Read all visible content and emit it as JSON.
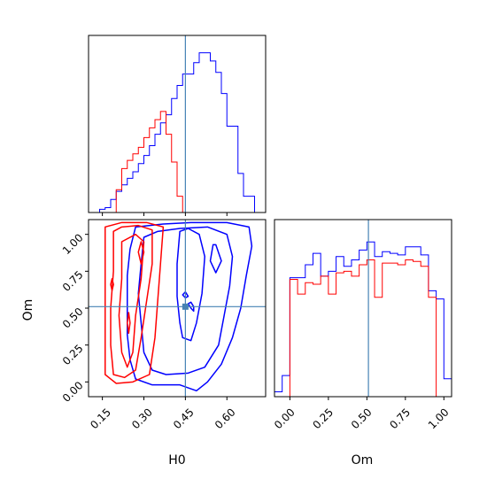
{
  "chart_data": {
    "type": "corner",
    "parameters": [
      "H0",
      "Om"
    ],
    "truth": {
      "H0": 0.45,
      "Om": 0.51
    },
    "colors": {
      "blue": "#0000ff",
      "red": "#ff0000",
      "truth": "#4682b4"
    },
    "panels": {
      "H0_hist": {
        "type": "histogram",
        "xlim": [
          0.1,
          0.74
        ],
        "bins_x": [
          0.1,
          0.12,
          0.14,
          0.16,
          0.18,
          0.2,
          0.22,
          0.24,
          0.26,
          0.28,
          0.3,
          0.32,
          0.34,
          0.36,
          0.38,
          0.4,
          0.42,
          0.44,
          0.46,
          0.48,
          0.5,
          0.52,
          0.54,
          0.56,
          0.58,
          0.6,
          0.62,
          0.64,
          0.66,
          0.68,
          0.7,
          0.72
        ],
        "series": [
          {
            "name": "",
            "color": "#0000ff",
            "counts": [
              0,
              0,
              0.02,
              0.03,
              0.08,
              0.13,
              0.17,
              0.21,
              0.25,
              0.3,
              0.35,
              0.41,
              0.48,
              0.55,
              0.6,
              0.7,
              0.78,
              0.85,
              0.85,
              0.92,
              0.98,
              0.98,
              0.93,
              0.86,
              0.73,
              0.53,
              0.53,
              0.24,
              0.1,
              0.1,
              0,
              0
            ]
          },
          {
            "name": "",
            "color": "#ff0000",
            "counts": [
              0,
              0,
              0,
              0,
              0,
              0.14,
              0.27,
              0.32,
              0.36,
              0.4,
              0.46,
              0.52,
              0.57,
              0.62,
              0.48,
              0.31,
              0.1,
              0,
              0,
              0,
              0,
              0,
              0,
              0,
              0,
              0,
              0,
              0,
              0,
              0,
              0,
              0
            ]
          }
        ],
        "ticks": [
          0.15,
          0.3,
          0.45,
          0.6
        ]
      },
      "Om_hist": {
        "type": "histogram",
        "xlim": [
          -0.1,
          1.05
        ],
        "bins_x": [
          -0.1,
          -0.05,
          0.0,
          0.05,
          0.1,
          0.15,
          0.2,
          0.25,
          0.3,
          0.35,
          0.4,
          0.45,
          0.5,
          0.55,
          0.6,
          0.65,
          0.7,
          0.75,
          0.8,
          0.85,
          0.9,
          0.95,
          1.0
        ],
        "series": [
          {
            "name": "",
            "color": "#0000ff",
            "counts": [
              0.03,
              0.13,
              0.73,
              0.73,
              0.81,
              0.88,
              0.74,
              0.77,
              0.86,
              0.8,
              0.84,
              0.9,
              0.95,
              0.86,
              0.89,
              0.88,
              0.87,
              0.92,
              0.92,
              0.87,
              0.65,
              0.6,
              0.11
            ]
          },
          {
            "name": "",
            "color": "#ff0000",
            "counts": [
              0,
              0,
              0.72,
              0.63,
              0.7,
              0.69,
              0.74,
              0.63,
              0.76,
              0.77,
              0.74,
              0.81,
              0.84,
              0.61,
              0.82,
              0.82,
              0.81,
              0.84,
              0.83,
              0.8,
              0.61,
              0,
              0
            ]
          }
        ],
        "xticks": [
          "0.00",
          "0.25",
          "0.50",
          "0.75",
          "1.00"
        ],
        "xtick_values": [
          0,
          0.25,
          0.5,
          0.75,
          1.0
        ],
        "xlabel": "Om"
      },
      "joint": {
        "type": "contour",
        "xlim": [
          0.1,
          0.74
        ],
        "ylim": [
          -0.1,
          1.1
        ],
        "xlabel": "H0",
        "ylabel": "Om",
        "xticks": [
          "0.15",
          "0.30",
          "0.45",
          "0.60"
        ],
        "xtick_values": [
          0.15,
          0.3,
          0.45,
          0.6
        ],
        "yticks": [
          "0.00",
          "0.25",
          "0.50",
          "0.75",
          "1.00"
        ],
        "ytick_values": [
          0,
          0.25,
          0.5,
          0.75,
          1.0
        ],
        "blue_contours": [
          [
            [
              0.27,
              1.05
            ],
            [
              0.25,
              0.9
            ],
            [
              0.24,
              0.72
            ],
            [
              0.24,
              0.52
            ],
            [
              0.24,
              0.32
            ],
            [
              0.25,
              0.15
            ],
            [
              0.27,
              0.02
            ],
            [
              0.33,
              -0.02
            ],
            [
              0.43,
              -0.02
            ],
            [
              0.49,
              -0.06
            ],
            [
              0.53,
              0.0
            ],
            [
              0.58,
              0.12
            ],
            [
              0.62,
              0.3
            ],
            [
              0.65,
              0.5
            ],
            [
              0.67,
              0.72
            ],
            [
              0.69,
              0.92
            ],
            [
              0.68,
              1.05
            ],
            [
              0.6,
              1.08
            ],
            [
              0.47,
              1.08
            ],
            [
              0.37,
              1.07
            ],
            [
              0.27,
              1.05
            ]
          ],
          [
            [
              0.3,
              0.98
            ],
            [
              0.29,
              0.8
            ],
            [
              0.28,
              0.6
            ],
            [
              0.29,
              0.4
            ],
            [
              0.3,
              0.2
            ],
            [
              0.33,
              0.08
            ],
            [
              0.38,
              0.05
            ],
            [
              0.46,
              0.06
            ],
            [
              0.52,
              0.1
            ],
            [
              0.57,
              0.25
            ],
            [
              0.59,
              0.45
            ],
            [
              0.61,
              0.65
            ],
            [
              0.62,
              0.85
            ],
            [
              0.6,
              1.0
            ],
            [
              0.53,
              1.05
            ],
            [
              0.43,
              1.04
            ],
            [
              0.35,
              1.02
            ],
            [
              0.3,
              0.98
            ]
          ],
          [
            [
              0.43,
              1.02
            ],
            [
              0.42,
              0.8
            ],
            [
              0.42,
              0.58
            ],
            [
              0.43,
              0.4
            ],
            [
              0.44,
              0.3
            ],
            [
              0.47,
              0.28
            ],
            [
              0.49,
              0.4
            ],
            [
              0.51,
              0.6
            ],
            [
              0.52,
              0.85
            ],
            [
              0.5,
              1.0
            ],
            [
              0.46,
              1.04
            ],
            [
              0.43,
              1.02
            ]
          ],
          [
            [
              0.55,
              0.93
            ],
            [
              0.54,
              0.82
            ],
            [
              0.56,
              0.74
            ],
            [
              0.58,
              0.82
            ],
            [
              0.56,
              0.93
            ],
            [
              0.55,
              0.93
            ]
          ],
          [
            [
              0.46,
              0.53
            ],
            [
              0.47,
              0.5
            ],
            [
              0.48,
              0.48
            ],
            [
              0.48,
              0.51
            ],
            [
              0.47,
              0.54
            ],
            [
              0.46,
              0.53
            ]
          ],
          [
            [
              0.44,
              0.59
            ],
            [
              0.45,
              0.57
            ],
            [
              0.46,
              0.58
            ],
            [
              0.45,
              0.61
            ],
            [
              0.44,
              0.59
            ]
          ]
        ],
        "red_contours": [
          [
            [
              0.16,
              1.05
            ],
            [
              0.16,
              0.8
            ],
            [
              0.16,
              0.52
            ],
            [
              0.16,
              0.3
            ],
            [
              0.16,
              0.05
            ],
            [
              0.2,
              -0.01
            ],
            [
              0.26,
              0.0
            ],
            [
              0.32,
              0.05
            ],
            [
              0.34,
              0.3
            ],
            [
              0.35,
              0.55
            ],
            [
              0.36,
              0.8
            ],
            [
              0.37,
              1.05
            ],
            [
              0.31,
              1.08
            ],
            [
              0.22,
              1.08
            ],
            [
              0.16,
              1.05
            ]
          ],
          [
            [
              0.19,
              1.02
            ],
            [
              0.19,
              0.75
            ],
            [
              0.18,
              0.5
            ],
            [
              0.18,
              0.25
            ],
            [
              0.19,
              0.05
            ],
            [
              0.23,
              0.03
            ],
            [
              0.27,
              0.08
            ],
            [
              0.29,
              0.3
            ],
            [
              0.31,
              0.55
            ],
            [
              0.33,
              0.8
            ],
            [
              0.33,
              1.03
            ],
            [
              0.28,
              1.06
            ],
            [
              0.22,
              1.05
            ],
            [
              0.19,
              1.02
            ]
          ],
          [
            [
              0.22,
              0.95
            ],
            [
              0.22,
              0.7
            ],
            [
              0.21,
              0.45
            ],
            [
              0.22,
              0.2
            ],
            [
              0.24,
              0.1
            ],
            [
              0.26,
              0.2
            ],
            [
              0.27,
              0.45
            ],
            [
              0.29,
              0.7
            ],
            [
              0.3,
              0.95
            ],
            [
              0.27,
              1.0
            ],
            [
              0.22,
              0.95
            ]
          ],
          [
            [
              0.18,
              0.66
            ],
            [
              0.185,
              0.62
            ],
            [
              0.19,
              0.66
            ],
            [
              0.185,
              0.7
            ],
            [
              0.18,
              0.66
            ]
          ],
          [
            [
              0.28,
              0.88
            ],
            [
              0.29,
              0.8
            ],
            [
              0.3,
              0.88
            ],
            [
              0.29,
              0.95
            ],
            [
              0.28,
              0.88
            ]
          ],
          [
            [
              0.24,
              0.4
            ],
            [
              0.245,
              0.33
            ],
            [
              0.25,
              0.4
            ],
            [
              0.245,
              0.47
            ],
            [
              0.24,
              0.4
            ]
          ]
        ]
      }
    }
  }
}
